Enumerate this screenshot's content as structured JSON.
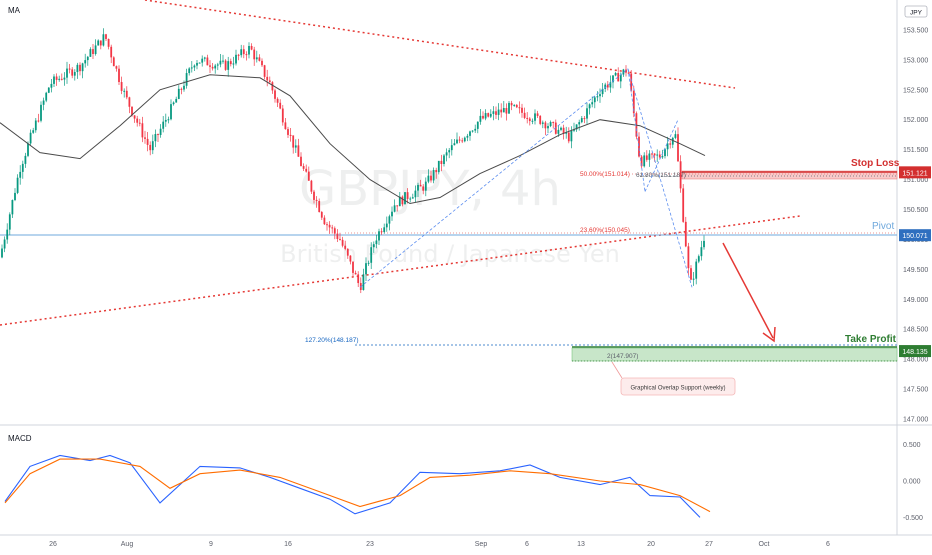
{
  "indicators": {
    "main": "MA",
    "sub": "MACD"
  },
  "badge": "JPY",
  "watermark": {
    "symbol": "GBPJPY, 4h",
    "name": "British Pound / Japanese Yen"
  },
  "price_axis": {
    "ticks": [
      "153.500",
      "153.000",
      "152.500",
      "152.000",
      "151.500",
      "151.000",
      "150.500",
      "150.000",
      "149.500",
      "149.000",
      "148.500",
      "148.000",
      "147.500",
      "147.000"
    ],
    "tags": [
      {
        "label": "151.121",
        "value": 151.121,
        "color": "#d32f2f"
      },
      {
        "label": "150.071",
        "value": 150.071,
        "color": "#2f6fbf"
      },
      {
        "label": "148.135",
        "value": 148.135,
        "color": "#2e7d32"
      }
    ]
  },
  "macd_axis": {
    "ticks": [
      "0.500",
      "0.000",
      "-0.500"
    ]
  },
  "time_axis": {
    "ticks": [
      "26",
      "Aug",
      "9",
      "16",
      "23",
      "Sep",
      "6",
      "13",
      "20",
      "27",
      "Oct",
      "6"
    ]
  },
  "annotations": {
    "stop_loss": "Stop Loss",
    "pivot": "Pivot",
    "take_profit": "Take Profit",
    "fib_50": "50.00%(151.014)",
    "fib_618": "61.80%(151.187)",
    "fib_236": "23.60%(150.045)",
    "fib_1272": "127.20%(148.187)",
    "fib_2": "2(147.907)",
    "support_note": "Graphical Overlap Support (weekly)"
  },
  "chart_data": {
    "type": "candlestick",
    "symbol": "GBPJPY",
    "timeframe": "4h",
    "ylim": [
      146.9,
      154.0
    ],
    "levels": {
      "stop_loss": 151.121,
      "pivot": 150.071,
      "take_profit": 148.135,
      "support_low": 147.907
    },
    "ma_path": [
      [
        0,
        151.95
      ],
      [
        40,
        151.45
      ],
      [
        80,
        151.35
      ],
      [
        120,
        151.9
      ],
      [
        160,
        152.5
      ],
      [
        210,
        152.75
      ],
      [
        260,
        152.7
      ],
      [
        290,
        152.4
      ],
      [
        330,
        151.6
      ],
      [
        370,
        151.0
      ],
      [
        410,
        150.6
      ],
      [
        440,
        150.7
      ],
      [
        480,
        151.1
      ],
      [
        520,
        151.4
      ],
      [
        560,
        151.75
      ],
      [
        600,
        152.0
      ],
      [
        640,
        151.9
      ],
      [
        680,
        151.6
      ],
      [
        705,
        151.4
      ]
    ],
    "price_path": [
      [
        0,
        149.7
      ],
      [
        20,
        151.2
      ],
      [
        50,
        152.6
      ],
      [
        80,
        152.9
      ],
      [
        105,
        153.4
      ],
      [
        125,
        152.4
      ],
      [
        150,
        151.5
      ],
      [
        175,
        152.3
      ],
      [
        195,
        153.0
      ],
      [
        225,
        152.9
      ],
      [
        250,
        153.2
      ],
      [
        270,
        152.6
      ],
      [
        300,
        151.3
      ],
      [
        325,
        150.3
      ],
      [
        340,
        150.0
      ],
      [
        360,
        149.2
      ],
      [
        375,
        150.0
      ],
      [
        395,
        150.6
      ],
      [
        425,
        150.9
      ],
      [
        450,
        151.5
      ],
      [
        480,
        152.0
      ],
      [
        510,
        152.2
      ],
      [
        540,
        152.0
      ],
      [
        570,
        151.7
      ],
      [
        600,
        152.5
      ],
      [
        628,
        152.85
      ],
      [
        640,
        151.3
      ],
      [
        660,
        151.4
      ],
      [
        675,
        151.8
      ],
      [
        690,
        149.2
      ],
      [
        705,
        150.1
      ]
    ],
    "macd": [
      [
        5,
        -0.28
      ],
      [
        30,
        0.2
      ],
      [
        60,
        0.35
      ],
      [
        90,
        0.28
      ],
      [
        110,
        0.35
      ],
      [
        130,
        0.25
      ],
      [
        160,
        -0.3
      ],
      [
        200,
        0.2
      ],
      [
        240,
        0.18
      ],
      [
        270,
        0.05
      ],
      [
        300,
        -0.1
      ],
      [
        330,
        -0.25
      ],
      [
        355,
        -0.45
      ],
      [
        390,
        -0.3
      ],
      [
        420,
        0.12
      ],
      [
        460,
        0.1
      ],
      [
        500,
        0.14
      ],
      [
        530,
        0.22
      ],
      [
        560,
        0.05
      ],
      [
        600,
        -0.05
      ],
      [
        630,
        0.05
      ],
      [
        650,
        -0.2
      ],
      [
        680,
        -0.22
      ],
      [
        700,
        -0.5
      ]
    ],
    "signal": [
      [
        5,
        -0.3
      ],
      [
        30,
        0.1
      ],
      [
        60,
        0.3
      ],
      [
        100,
        0.3
      ],
      [
        140,
        0.2
      ],
      [
        170,
        -0.1
      ],
      [
        200,
        0.1
      ],
      [
        240,
        0.15
      ],
      [
        280,
        0.05
      ],
      [
        320,
        -0.15
      ],
      [
        360,
        -0.35
      ],
      [
        400,
        -0.2
      ],
      [
        430,
        0.05
      ],
      [
        470,
        0.08
      ],
      [
        510,
        0.14
      ],
      [
        550,
        0.1
      ],
      [
        600,
        0.0
      ],
      [
        640,
        -0.05
      ],
      [
        680,
        -0.2
      ],
      [
        710,
        -0.42
      ]
    ]
  }
}
